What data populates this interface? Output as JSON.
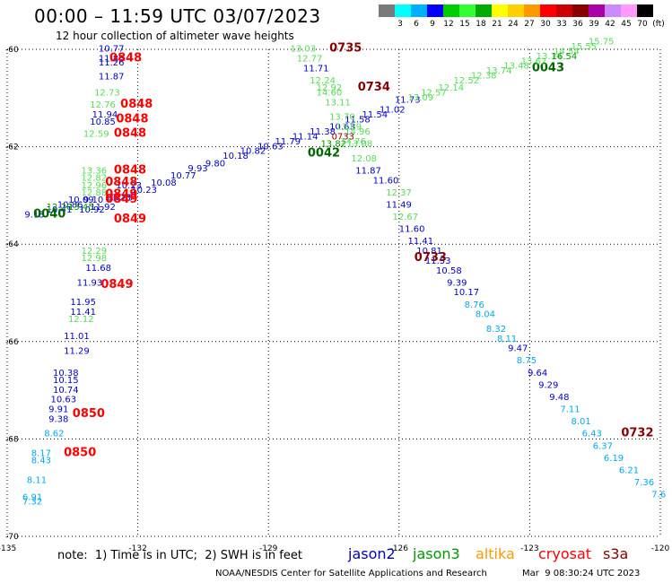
{
  "header": {
    "title": "00:00 – 11:59 UTC 03/07/2023",
    "subtitle": "12 hour collection of altimeter wave heights"
  },
  "color_scale": {
    "colors": [
      "#7a7a7a",
      "#00ffff",
      "#00b0ff",
      "#0000ff",
      "#00cc00",
      "#33ff33",
      "#00aa00",
      "#ffff00",
      "#ffd000",
      "#ff9900",
      "#ff0000",
      "#cc0000",
      "#880000",
      "#aa00aa",
      "#cc88ff",
      "#ff99ff",
      "#000000"
    ],
    "labels": [
      "3",
      "6",
      "9",
      "12",
      "15",
      "18",
      "21",
      "24",
      "27",
      "30",
      "33",
      "36",
      "39",
      "42",
      "45",
      "70",
      "(ft)"
    ]
  },
  "footer": {
    "note": "note:  1) Time is in UTC;  2) SWH is in feet",
    "satellites": [
      {
        "name": "jason2",
        "color": "#0000cc"
      },
      {
        "name": "jason3",
        "color": "#009900"
      },
      {
        "name": "altika",
        "color": "#ff9900"
      },
      {
        "name": "cryosat",
        "color": "#ff0000"
      },
      {
        "name": "s3a",
        "color": "#880000"
      }
    ],
    "credit": "NOAA/NESDIS Center for Satellite Applications and Research",
    "timestamp": "Mar  9 08:30:24 UTC 2023"
  },
  "chart_data": {
    "type": "scatter",
    "title": "12 hour collection of altimeter wave heights",
    "xlim": [
      -135,
      -120
    ],
    "ylim": [
      -70,
      -60
    ],
    "x_ticks": [
      "-135",
      "-132",
      "-129",
      "-126",
      "-123",
      "-120"
    ],
    "y_ticks": [
      "-60",
      "-62",
      "-64",
      "-66",
      "-68",
      "-70"
    ],
    "grid": "dotted",
    "units": "ft",
    "points": [
      {
        "x": -132.9,
        "y": -60.05,
        "v": "10.77",
        "c": "#0000cc"
      },
      {
        "x": -132.9,
        "y": -60.25,
        "v": "11.86",
        "c": "#0000cc"
      },
      {
        "x": -132.9,
        "y": -60.33,
        "v": "11.26",
        "c": "#0000cc"
      },
      {
        "x": -132.9,
        "y": -60.62,
        "v": "11.87",
        "c": "#0000cc"
      },
      {
        "x": -133.0,
        "y": -60.95,
        "v": "12.73",
        "c": "#55dd55"
      },
      {
        "x": -133.1,
        "y": -61.2,
        "v": "12.76",
        "c": "#55dd55"
      },
      {
        "x": -133.05,
        "y": -61.4,
        "v": "11.94",
        "c": "#0000cc"
      },
      {
        "x": -133.1,
        "y": -61.55,
        "v": "10.85",
        "c": "#0000cc"
      },
      {
        "x": -133.25,
        "y": -61.8,
        "v": "12.59",
        "c": "#55dd55"
      },
      {
        "x": -132.65,
        "y": -60.25,
        "v": "0848",
        "c": "#ff0000",
        "t": 1
      },
      {
        "x": -132.4,
        "y": -61.2,
        "v": "0848",
        "c": "#ff0000",
        "t": 1
      },
      {
        "x": -132.5,
        "y": -61.5,
        "v": "0848",
        "c": "#ff0000",
        "t": 1
      },
      {
        "x": -132.55,
        "y": -61.8,
        "v": "0848",
        "c": "#ff0000",
        "t": 1
      },
      {
        "x": -133.3,
        "y": -62.55,
        "v": "13.36",
        "c": "#55dd55"
      },
      {
        "x": -133.3,
        "y": -62.7,
        "v": "12.82",
        "c": "#55dd55"
      },
      {
        "x": -133.3,
        "y": -62.85,
        "v": "12.96",
        "c": "#55dd55"
      },
      {
        "x": -133.3,
        "y": -63.0,
        "v": "12.88",
        "c": "#55dd55"
      },
      {
        "x": -133.25,
        "y": -63.15,
        "v": "9.10",
        "c": "#0000cc"
      },
      {
        "x": -133.35,
        "y": -63.35,
        "v": "10.92",
        "c": "#0000cc"
      },
      {
        "x": -132.7,
        "y": -63.1,
        "v": "10.23",
        "c": "#0000cc"
      },
      {
        "x": -132.5,
        "y": -62.85,
        "v": "10.23",
        "c": "#0000cc"
      },
      {
        "x": -132.15,
        "y": -62.95,
        "v": "10.23",
        "c": "#0000cc"
      },
      {
        "x": -131.7,
        "y": -62.8,
        "v": "10.08",
        "c": "#0000cc"
      },
      {
        "x": -131.25,
        "y": -62.65,
        "v": "10.77",
        "c": "#0000cc"
      },
      {
        "x": -130.85,
        "y": -62.5,
        "v": "9.93",
        "c": "#0000cc"
      },
      {
        "x": -130.45,
        "y": -62.4,
        "v": "9.80",
        "c": "#0000cc"
      },
      {
        "x": -130.05,
        "y": -62.25,
        "v": "10.18",
        "c": "#0000cc"
      },
      {
        "x": -129.65,
        "y": -62.15,
        "v": "10.82",
        "c": "#0000cc"
      },
      {
        "x": -129.25,
        "y": -62.05,
        "v": "10.63",
        "c": "#0000cc"
      },
      {
        "x": -128.85,
        "y": -61.95,
        "v": "11.79",
        "c": "#0000cc"
      },
      {
        "x": -128.45,
        "y": -61.85,
        "v": "11.14",
        "c": "#0000cc"
      },
      {
        "x": -128.05,
        "y": -61.75,
        "v": "11.38",
        "c": "#0000cc"
      },
      {
        "x": -127.6,
        "y": -61.65,
        "v": "10.63",
        "c": "#0000cc"
      },
      {
        "x": -127.25,
        "y": -61.5,
        "v": "11.58",
        "c": "#0000cc"
      },
      {
        "x": -126.85,
        "y": -61.4,
        "v": "11.54",
        "c": "#0000cc"
      },
      {
        "x": -126.45,
        "y": -61.3,
        "v": "11.02",
        "c": "#0000cc"
      },
      {
        "x": -126.1,
        "y": -61.1,
        "v": "11.73",
        "c": "#0000cc"
      },
      {
        "x": -134.6,
        "y": -63.45,
        "v": "9.13",
        "c": "#0000cc"
      },
      {
        "x": -134.1,
        "y": -63.35,
        "v": "10.41",
        "c": "#0000cc"
      },
      {
        "x": -133.85,
        "y": -63.25,
        "v": "10.86",
        "c": "#0000cc"
      },
      {
        "x": -133.6,
        "y": -63.15,
        "v": "10.09",
        "c": "#0000cc"
      },
      {
        "x": -133.1,
        "y": -63.3,
        "v": "11.92",
        "c": "#0000cc"
      },
      {
        "x": -132.75,
        "y": -63.1,
        "v": "10.23",
        "c": "#0000cc"
      },
      {
        "x": -133.6,
        "y": -63.3,
        "v": "13.45",
        "c": "#009900"
      },
      {
        "x": -134.1,
        "y": -63.3,
        "v": "12.20",
        "c": "#009900"
      },
      {
        "x": -134.4,
        "y": -63.45,
        "v": "0040",
        "c": "#006600",
        "t": 1
      },
      {
        "x": -128.1,
        "y": -62.2,
        "v": "0042",
        "c": "#006600",
        "t": 1
      },
      {
        "x": -122.95,
        "y": -60.45,
        "v": "0043",
        "c": "#006600",
        "t": 1
      },
      {
        "x": -127.8,
        "y": -62.0,
        "v": "13.82",
        "c": "#009900"
      },
      {
        "x": -125.8,
        "y": -61.05,
        "v": "13.09",
        "c": "#55dd55"
      },
      {
        "x": -125.5,
        "y": -60.95,
        "v": "12.57",
        "c": "#55dd55"
      },
      {
        "x": -125.1,
        "y": -60.85,
        "v": "12.14",
        "c": "#55dd55"
      },
      {
        "x": -124.75,
        "y": -60.7,
        "v": "12.52",
        "c": "#55dd55"
      },
      {
        "x": -124.35,
        "y": -60.6,
        "v": "12.38",
        "c": "#55dd55"
      },
      {
        "x": -124.0,
        "y": -60.5,
        "v": "13.74",
        "c": "#55dd55"
      },
      {
        "x": -123.6,
        "y": -60.4,
        "v": "13.48",
        "c": "#55dd55"
      },
      {
        "x": -123.2,
        "y": -60.3,
        "v": "13.62",
        "c": "#55dd55"
      },
      {
        "x": -122.85,
        "y": -60.2,
        "v": "13.14",
        "c": "#55dd55"
      },
      {
        "x": -122.45,
        "y": -60.1,
        "v": "14.54",
        "c": "#55dd55"
      },
      {
        "x": -122.05,
        "y": -60.0,
        "v": "15.55",
        "c": "#55dd55"
      },
      {
        "x": -121.65,
        "y": -59.9,
        "v": "15.75",
        "c": "#55dd55"
      },
      {
        "x": -122.5,
        "y": -60.2,
        "v": "16.54",
        "c": "#009900"
      },
      {
        "x": -128.5,
        "y": -60.05,
        "v": "13.03",
        "c": "#55dd55"
      },
      {
        "x": -128.35,
        "y": -60.25,
        "v": "12.77",
        "c": "#55dd55"
      },
      {
        "x": -128.2,
        "y": -60.45,
        "v": "11.71",
        "c": "#0000cc"
      },
      {
        "x": -128.05,
        "y": -60.7,
        "v": "12.24",
        "c": "#55dd55"
      },
      {
        "x": -127.9,
        "y": -60.85,
        "v": "12.92",
        "c": "#55dd55"
      },
      {
        "x": -127.9,
        "y": -60.95,
        "v": "14.60",
        "c": "#55dd55"
      },
      {
        "x": -127.7,
        "y": -61.15,
        "v": "13.11",
        "c": "#55dd55"
      },
      {
        "x": -127.6,
        "y": -61.45,
        "v": "13.70",
        "c": "#55dd55"
      },
      {
        "x": -127.45,
        "y": -61.65,
        "v": "13.89",
        "c": "#55dd55"
      },
      {
        "x": -127.25,
        "y": -61.75,
        "v": "14.96",
        "c": "#55dd55"
      },
      {
        "x": -127.2,
        "y": -62.0,
        "v": "13.08",
        "c": "#55dd55"
      },
      {
        "x": -127.1,
        "y": -62.3,
        "v": "12.08",
        "c": "#55dd55"
      },
      {
        "x": -127.35,
        "y": -61.95,
        "v": "14.76",
        "c": "#55dd55"
      },
      {
        "x": -127.55,
        "y": -61.85,
        "v": "0733",
        "c": "#880000",
        "t": 0
      },
      {
        "x": -127.0,
        "y": -62.55,
        "v": "11.87",
        "c": "#0000cc"
      },
      {
        "x": -126.6,
        "y": -62.75,
        "v": "11.60",
        "c": "#0000cc"
      },
      {
        "x": -126.3,
        "y": -63.0,
        "v": "12.37",
        "c": "#55dd55"
      },
      {
        "x": -126.3,
        "y": -63.25,
        "v": "11.49",
        "c": "#0000cc"
      },
      {
        "x": -126.15,
        "y": -63.5,
        "v": "12.67",
        "c": "#55dd55"
      },
      {
        "x": -126.0,
        "y": -63.75,
        "v": "11.60",
        "c": "#0000cc"
      },
      {
        "x": -125.8,
        "y": -64.0,
        "v": "11.41",
        "c": "#0000cc"
      },
      {
        "x": -125.6,
        "y": -64.2,
        "v": "10.81",
        "c": "#0000cc"
      },
      {
        "x": -125.4,
        "y": -64.4,
        "v": "11.53",
        "c": "#0000cc"
      },
      {
        "x": -125.15,
        "y": -64.6,
        "v": "10.58",
        "c": "#0000cc"
      },
      {
        "x": -124.9,
        "y": -64.85,
        "v": "9.39",
        "c": "#0000cc"
      },
      {
        "x": -124.75,
        "y": -65.05,
        "v": "10.17",
        "c": "#0000cc"
      },
      {
        "x": -124.5,
        "y": -65.3,
        "v": "8.76",
        "c": "#00aaee"
      },
      {
        "x": -124.25,
        "y": -65.5,
        "v": "8.04",
        "c": "#00aaee"
      },
      {
        "x": -124.0,
        "y": -65.8,
        "v": "8.32",
        "c": "#00aaee"
      },
      {
        "x": -123.75,
        "y": -66.0,
        "v": "8.11",
        "c": "#00aaee"
      },
      {
        "x": -123.5,
        "y": -66.2,
        "v": "9.47",
        "c": "#0000cc"
      },
      {
        "x": -123.3,
        "y": -66.45,
        "v": "8.75",
        "c": "#00aaee"
      },
      {
        "x": -123.05,
        "y": -66.7,
        "v": "9.64",
        "c": "#0000cc"
      },
      {
        "x": -122.8,
        "y": -66.95,
        "v": "9.29",
        "c": "#0000cc"
      },
      {
        "x": -122.55,
        "y": -67.2,
        "v": "9.48",
        "c": "#0000cc"
      },
      {
        "x": -122.3,
        "y": -67.45,
        "v": "7.11",
        "c": "#00aaee"
      },
      {
        "x": -122.05,
        "y": -67.7,
        "v": "8.01",
        "c": "#00aaee"
      },
      {
        "x": -121.8,
        "y": -67.95,
        "v": "6.43",
        "c": "#00aaee"
      },
      {
        "x": -121.55,
        "y": -68.2,
        "v": "6.37",
        "c": "#00aaee"
      },
      {
        "x": -121.3,
        "y": -68.45,
        "v": "6.19",
        "c": "#00aaee"
      },
      {
        "x": -120.95,
        "y": -68.7,
        "v": "6.21",
        "c": "#00aaee"
      },
      {
        "x": -120.6,
        "y": -68.95,
        "v": "7.36",
        "c": "#00aaee"
      },
      {
        "x": -120.2,
        "y": -69.2,
        "v": "7.6",
        "c": "#00aaee"
      },
      {
        "x": -127.6,
        "y": -60.05,
        "v": "0735",
        "c": "#880000",
        "t": 1
      },
      {
        "x": -126.95,
        "y": -60.85,
        "v": "0734",
        "c": "#880000",
        "t": 1
      },
      {
        "x": -125.65,
        "y": -64.35,
        "v": "0733",
        "c": "#880000",
        "t": 1
      },
      {
        "x": -120.9,
        "y": -67.95,
        "v": "0732",
        "c": "#880000",
        "t": 1
      },
      {
        "x": -133.3,
        "y": -64.2,
        "v": "12.29",
        "c": "#55dd55"
      },
      {
        "x": -133.3,
        "y": -64.35,
        "v": "12.98",
        "c": "#55dd55"
      },
      {
        "x": -133.2,
        "y": -64.55,
        "v": "11.68",
        "c": "#0000cc"
      },
      {
        "x": -133.4,
        "y": -64.85,
        "v": "11.93",
        "c": "#0000cc"
      },
      {
        "x": -133.55,
        "y": -65.25,
        "v": "11.95",
        "c": "#0000cc"
      },
      {
        "x": -133.55,
        "y": -65.45,
        "v": "11.41",
        "c": "#0000cc"
      },
      {
        "x": -133.6,
        "y": -65.6,
        "v": "12.12",
        "c": "#55dd55"
      },
      {
        "x": -133.7,
        "y": -65.95,
        "v": "11.01",
        "c": "#0000cc"
      },
      {
        "x": -133.7,
        "y": -66.25,
        "v": "11.29",
        "c": "#0000cc"
      },
      {
        "x": -133.95,
        "y": -66.7,
        "v": "10.38",
        "c": "#0000cc"
      },
      {
        "x": -133.95,
        "y": -66.85,
        "v": "10.15",
        "c": "#0000cc"
      },
      {
        "x": -133.95,
        "y": -67.05,
        "v": "10.74",
        "c": "#0000cc"
      },
      {
        "x": -134.0,
        "y": -67.25,
        "v": "10.63",
        "c": "#0000cc"
      },
      {
        "x": -134.05,
        "y": -67.45,
        "v": "9.91",
        "c": "#0000cc"
      },
      {
        "x": -134.05,
        "y": -67.65,
        "v": "9.38",
        "c": "#0000cc"
      },
      {
        "x": -134.15,
        "y": -67.95,
        "v": "8.62",
        "c": "#00aaee"
      },
      {
        "x": -134.45,
        "y": -68.35,
        "v": "8.17",
        "c": "#00aaee"
      },
      {
        "x": -134.45,
        "y": -68.5,
        "v": "8.43",
        "c": "#00aaee"
      },
      {
        "x": -134.55,
        "y": -68.9,
        "v": "8.11",
        "c": "#00aaee"
      },
      {
        "x": -134.65,
        "y": -69.25,
        "v": "6.91",
        "c": "#00aaee"
      },
      {
        "x": -134.65,
        "y": -69.35,
        "v": "7.32",
        "c": "#00aaee"
      },
      {
        "x": -132.75,
        "y": -62.8,
        "v": "0848",
        "c": "#ff0000",
        "t": 1
      },
      {
        "x": -132.75,
        "y": -63.05,
        "v": "0849",
        "c": "#ff0000",
        "t": 1
      },
      {
        "x": -132.75,
        "y": -63.15,
        "v": "0849",
        "c": "#ff0000",
        "t": 1
      },
      {
        "x": -132.55,
        "y": -63.55,
        "v": "0849",
        "c": "#ff0000",
        "t": 1
      },
      {
        "x": -132.55,
        "y": -62.55,
        "v": "0848",
        "c": "#ff0000",
        "t": 1
      },
      {
        "x": -132.85,
        "y": -64.9,
        "v": "0849",
        "c": "#ff0000",
        "t": 1
      },
      {
        "x": -133.5,
        "y": -67.55,
        "v": "0850",
        "c": "#ff0000",
        "t": 1
      },
      {
        "x": -133.7,
        "y": -68.35,
        "v": "0850",
        "c": "#ff0000",
        "t": 1
      }
    ]
  }
}
